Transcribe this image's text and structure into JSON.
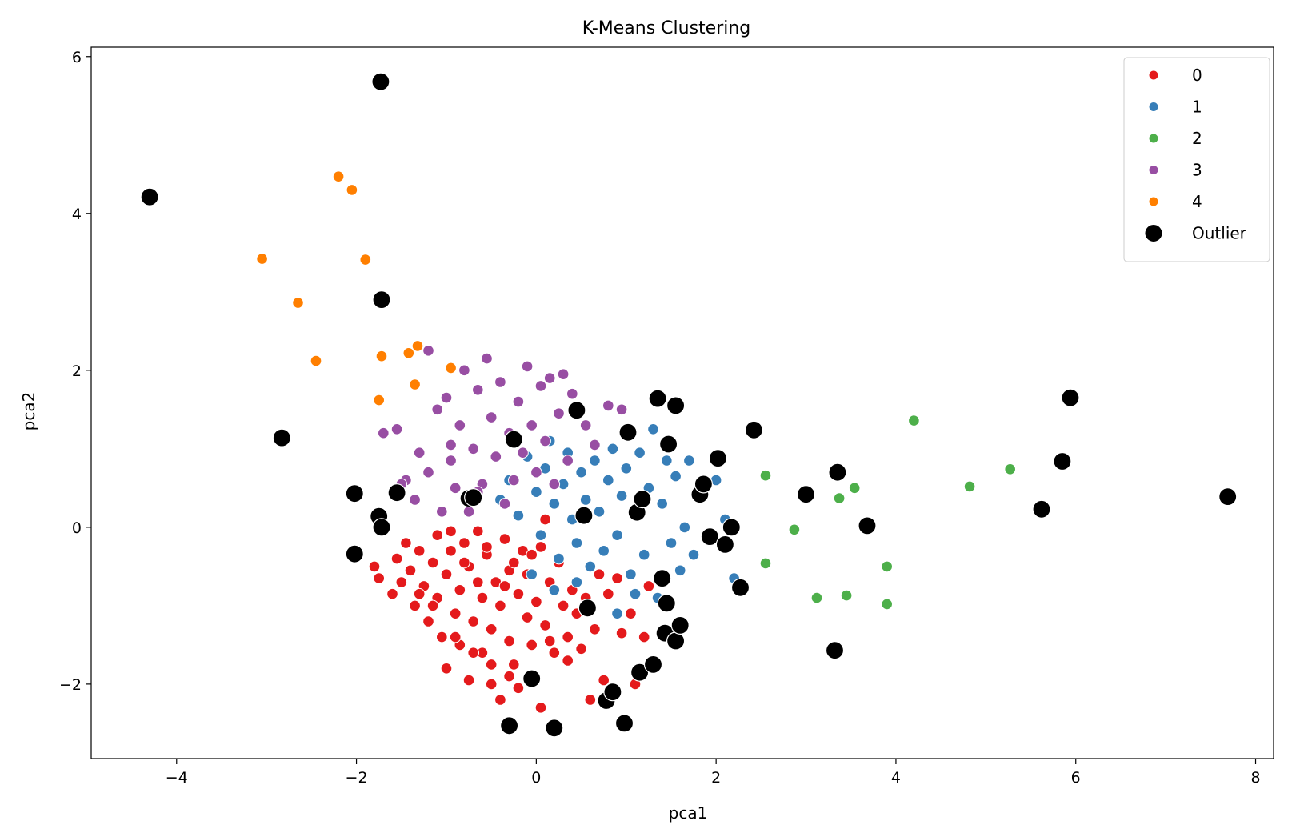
{
  "chart_data": {
    "type": "scatter",
    "title": "K-Means Clustering",
    "xlabel": "pca1",
    "ylabel": "pca2",
    "xlim": [
      -4.95,
      8.2
    ],
    "ylim": [
      -2.95,
      6.12
    ],
    "xticks": [
      -4,
      -2,
      0,
      2,
      4,
      6,
      8
    ],
    "yticks": [
      -2,
      0,
      2,
      4,
      6
    ],
    "xtick_labels": [
      "−4",
      "−2",
      "0",
      "2",
      "4",
      "6",
      "8"
    ],
    "ytick_labels": [
      "−2",
      "0",
      "2",
      "4",
      "6"
    ],
    "grid": false,
    "legend_position": "top-right",
    "series": [
      {
        "name": "0",
        "color": "#e41a1c",
        "points": [
          [
            -1.8,
            -0.5
          ],
          [
            -1.75,
            -0.65
          ],
          [
            -1.6,
            -0.85
          ],
          [
            -1.55,
            -0.4
          ],
          [
            -1.5,
            -0.7
          ],
          [
            -1.45,
            -0.2
          ],
          [
            -1.4,
            -0.55
          ],
          [
            -1.35,
            -1.0
          ],
          [
            -1.3,
            -0.3
          ],
          [
            -1.25,
            -0.75
          ],
          [
            -1.2,
            -1.2
          ],
          [
            -1.15,
            -0.45
          ],
          [
            -1.1,
            -0.9
          ],
          [
            -1.1,
            -0.1
          ],
          [
            -1.05,
            -1.4
          ],
          [
            -1.0,
            -0.6
          ],
          [
            -1.0,
            -1.8
          ],
          [
            -0.95,
            -0.3
          ],
          [
            -0.9,
            -1.1
          ],
          [
            -0.85,
            -0.8
          ],
          [
            -0.85,
            -1.5
          ],
          [
            -0.8,
            -0.2
          ],
          [
            -0.75,
            -1.95
          ],
          [
            -0.75,
            -0.5
          ],
          [
            -0.7,
            -1.2
          ],
          [
            -0.65,
            -0.05
          ],
          [
            -0.6,
            -0.9
          ],
          [
            -0.6,
            -1.6
          ],
          [
            -0.55,
            -0.35
          ],
          [
            -0.5,
            -1.3
          ],
          [
            -0.5,
            -2.0
          ],
          [
            -0.45,
            -0.7
          ],
          [
            -0.4,
            -1.0
          ],
          [
            -0.4,
            -2.2
          ],
          [
            -0.35,
            -0.15
          ],
          [
            -0.3,
            -1.45
          ],
          [
            -0.3,
            -0.55
          ],
          [
            -0.25,
            -1.75
          ],
          [
            -0.2,
            -0.85
          ],
          [
            -0.2,
            -2.05
          ],
          [
            -0.15,
            -0.3
          ],
          [
            -0.1,
            -1.15
          ],
          [
            -0.1,
            -0.6
          ],
          [
            -0.05,
            -1.5
          ],
          [
            0.0,
            -0.95
          ],
          [
            0.05,
            -2.3
          ],
          [
            0.05,
            -0.25
          ],
          [
            0.1,
            -1.25
          ],
          [
            0.15,
            -0.7
          ],
          [
            0.2,
            -1.6
          ],
          [
            0.25,
            -0.45
          ],
          [
            0.3,
            -1.0
          ],
          [
            0.35,
            -1.4
          ],
          [
            0.4,
            -0.8
          ],
          [
            0.45,
            -1.1
          ],
          [
            0.5,
            -1.55
          ],
          [
            0.55,
            -0.9
          ],
          [
            0.6,
            -2.2
          ],
          [
            0.65,
            -1.3
          ],
          [
            0.7,
            -0.6
          ],
          [
            0.75,
            -1.95
          ],
          [
            0.8,
            -0.85
          ],
          [
            0.9,
            -0.65
          ],
          [
            0.95,
            -1.35
          ],
          [
            1.05,
            -1.1
          ],
          [
            1.1,
            -2.0
          ],
          [
            1.2,
            -1.4
          ],
          [
            1.25,
            -0.75
          ],
          [
            -0.95,
            -0.05
          ],
          [
            -0.8,
            -0.45
          ],
          [
            -0.65,
            -0.7
          ],
          [
            -0.55,
            -0.25
          ],
          [
            -0.35,
            -0.75
          ],
          [
            -0.25,
            -0.45
          ],
          [
            -0.05,
            -0.35
          ],
          [
            0.1,
            0.1
          ],
          [
            -1.3,
            -0.85
          ],
          [
            -1.15,
            -1.0
          ],
          [
            -0.9,
            -1.4
          ],
          [
            -0.7,
            -1.6
          ],
          [
            -0.5,
            -1.75
          ],
          [
            -0.3,
            -1.9
          ],
          [
            0.15,
            -1.45
          ],
          [
            0.35,
            -1.7
          ]
        ]
      },
      {
        "name": "1",
        "color": "#377eb8",
        "points": [
          [
            -0.4,
            0.35
          ],
          [
            -0.3,
            0.6
          ],
          [
            -0.2,
            0.15
          ],
          [
            -0.1,
            0.9
          ],
          [
            0.0,
            0.45
          ],
          [
            0.05,
            -0.1
          ],
          [
            0.1,
            0.75
          ],
          [
            0.15,
            1.1
          ],
          [
            0.2,
            0.3
          ],
          [
            0.25,
            -0.4
          ],
          [
            0.3,
            0.55
          ],
          [
            0.35,
            0.95
          ],
          [
            0.4,
            0.1
          ],
          [
            0.45,
            -0.2
          ],
          [
            0.5,
            0.7
          ],
          [
            0.55,
            0.35
          ],
          [
            0.6,
            -0.5
          ],
          [
            0.65,
            0.85
          ],
          [
            0.7,
            0.2
          ],
          [
            0.75,
            -0.3
          ],
          [
            0.8,
            0.6
          ],
          [
            0.85,
            1.0
          ],
          [
            0.9,
            -0.1
          ],
          [
            0.95,
            0.4
          ],
          [
            1.0,
            0.75
          ],
          [
            1.05,
            -0.6
          ],
          [
            1.1,
            0.2
          ],
          [
            1.15,
            0.95
          ],
          [
            1.2,
            -0.35
          ],
          [
            1.25,
            0.5
          ],
          [
            1.3,
            1.25
          ],
          [
            1.35,
            -0.9
          ],
          [
            1.4,
            0.3
          ],
          [
            1.45,
            0.85
          ],
          [
            1.5,
            -0.2
          ],
          [
            1.55,
            0.65
          ],
          [
            1.6,
            -0.55
          ],
          [
            1.65,
            0.0
          ],
          [
            1.7,
            0.85
          ],
          [
            1.75,
            -0.35
          ],
          [
            1.8,
            0.45
          ],
          [
            1.9,
            -0.15
          ],
          [
            2.0,
            0.6
          ],
          [
            2.1,
            0.1
          ],
          [
            2.2,
            -0.65
          ],
          [
            -0.05,
            -0.6
          ],
          [
            0.2,
            -0.8
          ],
          [
            0.45,
            -0.7
          ],
          [
            0.9,
            -1.1
          ],
          [
            1.1,
            -0.85
          ]
        ]
      },
      {
        "name": "2",
        "color": "#4daf4a",
        "points": [
          [
            2.55,
            0.66
          ],
          [
            2.55,
            -0.46
          ],
          [
            2.87,
            -0.03
          ],
          [
            3.12,
            -0.9
          ],
          [
            3.37,
            0.37
          ],
          [
            3.45,
            -0.87
          ],
          [
            3.54,
            0.5
          ],
          [
            3.9,
            -0.5
          ],
          [
            3.9,
            -0.98
          ],
          [
            4.2,
            1.36
          ],
          [
            4.82,
            0.52
          ],
          [
            5.27,
            0.74
          ]
        ]
      },
      {
        "name": "3",
        "color": "#984ea3",
        "points": [
          [
            -1.7,
            1.2
          ],
          [
            -1.55,
            1.25
          ],
          [
            -1.45,
            0.6
          ],
          [
            -1.35,
            0.35
          ],
          [
            -1.3,
            0.95
          ],
          [
            -1.2,
            0.7
          ],
          [
            -1.1,
            1.5
          ],
          [
            -1.05,
            0.2
          ],
          [
            -1.0,
            1.65
          ],
          [
            -0.95,
            0.85
          ],
          [
            -0.9,
            0.5
          ],
          [
            -0.85,
            1.3
          ],
          [
            -0.8,
            2.0
          ],
          [
            -0.75,
            0.2
          ],
          [
            -0.7,
            1.0
          ],
          [
            -0.65,
            1.75
          ],
          [
            -0.6,
            0.55
          ],
          [
            -0.55,
            2.15
          ],
          [
            -0.5,
            1.4
          ],
          [
            -0.45,
            0.9
          ],
          [
            -0.4,
            1.85
          ],
          [
            -0.35,
            0.3
          ],
          [
            -0.3,
            1.2
          ],
          [
            -0.25,
            0.6
          ],
          [
            -0.2,
            1.6
          ],
          [
            -0.15,
            0.95
          ],
          [
            -0.1,
            2.05
          ],
          [
            -0.05,
            1.3
          ],
          [
            0.0,
            0.7
          ],
          [
            0.05,
            1.8
          ],
          [
            0.1,
            1.1
          ],
          [
            0.15,
            1.9
          ],
          [
            0.2,
            0.55
          ],
          [
            0.25,
            1.45
          ],
          [
            0.3,
            1.95
          ],
          [
            0.35,
            0.85
          ],
          [
            0.4,
            1.7
          ],
          [
            0.55,
            1.3
          ],
          [
            0.65,
            1.05
          ],
          [
            0.8,
            1.55
          ],
          [
            0.95,
            1.5
          ],
          [
            -1.2,
            2.25
          ],
          [
            -1.5,
            0.55
          ],
          [
            -0.95,
            1.05
          ],
          [
            -0.65,
            0.45
          ]
        ]
      },
      {
        "name": "4",
        "color": "#ff7f00",
        "points": [
          [
            -3.05,
            3.42
          ],
          [
            -2.65,
            2.86
          ],
          [
            -2.45,
            2.12
          ],
          [
            -2.2,
            4.47
          ],
          [
            -2.05,
            4.3
          ],
          [
            -1.9,
            3.41
          ],
          [
            -1.75,
            1.62
          ],
          [
            -1.72,
            2.18
          ],
          [
            -1.42,
            2.22
          ],
          [
            -1.35,
            1.82
          ],
          [
            -1.32,
            2.31
          ],
          [
            -0.95,
            2.03
          ]
        ]
      },
      {
        "name": "Outlier",
        "color": "#000000",
        "points": [
          [
            -4.3,
            4.21
          ],
          [
            -2.83,
            1.14
          ],
          [
            -2.02,
            0.43
          ],
          [
            -2.02,
            -0.34
          ],
          [
            -1.75,
            0.14
          ],
          [
            -1.72,
            0.0
          ],
          [
            -1.73,
            5.68
          ],
          [
            -1.72,
            2.9
          ],
          [
            -1.55,
            0.44
          ],
          [
            -0.75,
            0.37
          ],
          [
            -0.7,
            0.38
          ],
          [
            -0.3,
            -2.53
          ],
          [
            -0.25,
            1.12
          ],
          [
            -0.05,
            -1.93
          ],
          [
            0.2,
            -2.56
          ],
          [
            0.45,
            1.49
          ],
          [
            0.53,
            0.15
          ],
          [
            0.57,
            -1.03
          ],
          [
            0.78,
            -2.21
          ],
          [
            0.85,
            -2.1
          ],
          [
            0.98,
            -2.5
          ],
          [
            1.02,
            1.21
          ],
          [
            1.12,
            0.19
          ],
          [
            1.15,
            -1.85
          ],
          [
            1.18,
            0.36
          ],
          [
            1.3,
            -1.75
          ],
          [
            1.35,
            1.64
          ],
          [
            1.4,
            -0.65
          ],
          [
            1.43,
            -1.35
          ],
          [
            1.45,
            -0.97
          ],
          [
            1.47,
            1.06
          ],
          [
            1.55,
            1.55
          ],
          [
            1.55,
            -1.45
          ],
          [
            1.6,
            -1.25
          ],
          [
            1.82,
            0.42
          ],
          [
            1.86,
            0.55
          ],
          [
            1.93,
            -0.12
          ],
          [
            2.02,
            0.88
          ],
          [
            2.1,
            -0.22
          ],
          [
            2.17,
            0.0
          ],
          [
            2.27,
            -0.77
          ],
          [
            2.42,
            1.24
          ],
          [
            3.0,
            0.42
          ],
          [
            3.32,
            -1.57
          ],
          [
            3.35,
            0.7
          ],
          [
            3.68,
            0.02
          ],
          [
            5.62,
            0.23
          ],
          [
            5.85,
            0.84
          ],
          [
            5.94,
            1.65
          ],
          [
            7.69,
            0.39
          ]
        ]
      }
    ]
  }
}
